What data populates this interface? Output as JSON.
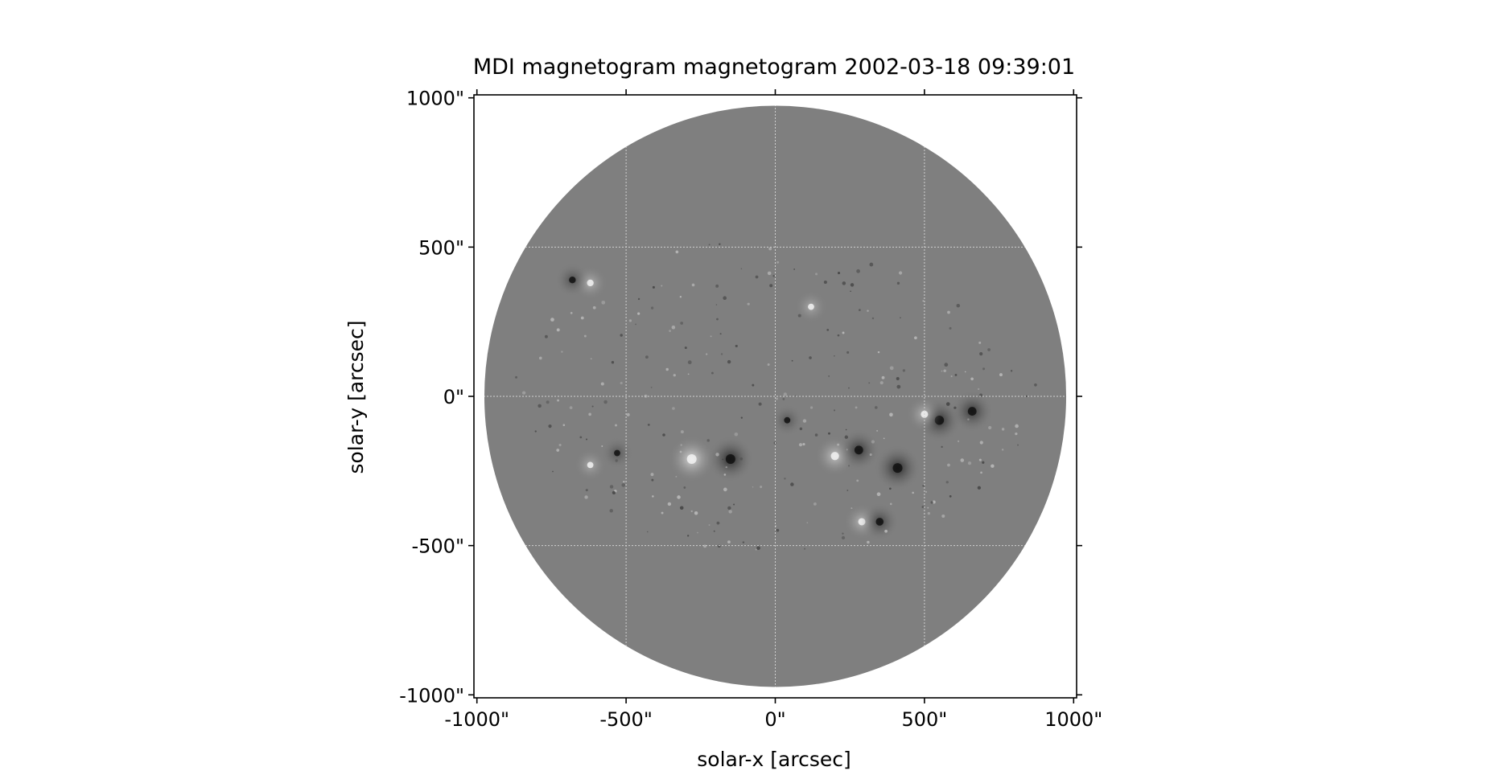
{
  "title": "MDI magnetogram magnetogram 2002-03-18 09:39:01",
  "xlabel": "solar-x [arcsec]",
  "ylabel": "solar-y [arcsec]",
  "x_ticks": [
    {
      "value": -1000,
      "label": "-1000\""
    },
    {
      "value": -500,
      "label": "-500\""
    },
    {
      "value": 0,
      "label": "0\""
    },
    {
      "value": 500,
      "label": "500\""
    },
    {
      "value": 1000,
      "label": "1000\""
    }
  ],
  "y_ticks": [
    {
      "value": 1000,
      "label": "1000\""
    },
    {
      "value": 500,
      "label": "500\""
    },
    {
      "value": 0,
      "label": "0\""
    },
    {
      "value": -500,
      "label": "-500\""
    },
    {
      "value": -1000,
      "label": "-1000\""
    }
  ],
  "axis_range_arcsec": {
    "x": [
      -1010,
      1010
    ],
    "y": [
      -1010,
      1010
    ]
  },
  "solar_radius_arcsec": 975,
  "grid": true,
  "colors": {
    "disk": "#7f7f7f",
    "positive_flux": "#f2f2f2",
    "negative_flux": "#111111",
    "grid": "#d0d0d0"
  },
  "active_regions": [
    {
      "x": -280,
      "y": -210,
      "polarity": "positive",
      "strength": 1.0
    },
    {
      "x": -150,
      "y": -210,
      "polarity": "negative",
      "strength": 1.0
    },
    {
      "x": 200,
      "y": -200,
      "polarity": "positive",
      "strength": 0.7
    },
    {
      "x": 280,
      "y": -180,
      "polarity": "negative",
      "strength": 0.8
    },
    {
      "x": 410,
      "y": -240,
      "polarity": "negative",
      "strength": 1.0
    },
    {
      "x": 550,
      "y": -80,
      "polarity": "negative",
      "strength": 0.9
    },
    {
      "x": 500,
      "y": -60,
      "polarity": "positive",
      "strength": 0.5
    },
    {
      "x": 660,
      "y": -50,
      "polarity": "negative",
      "strength": 0.8
    },
    {
      "x": 290,
      "y": -420,
      "polarity": "positive",
      "strength": 0.5
    },
    {
      "x": 350,
      "y": -420,
      "polarity": "negative",
      "strength": 0.6
    },
    {
      "x": -620,
      "y": 380,
      "polarity": "positive",
      "strength": 0.4
    },
    {
      "x": -680,
      "y": 390,
      "polarity": "negative",
      "strength": 0.4
    },
    {
      "x": 120,
      "y": 300,
      "polarity": "positive",
      "strength": 0.3
    },
    {
      "x": -530,
      "y": -190,
      "polarity": "negative",
      "strength": 0.3
    },
    {
      "x": -620,
      "y": -230,
      "polarity": "positive",
      "strength": 0.3
    },
    {
      "x": 40,
      "y": -80,
      "polarity": "negative",
      "strength": 0.3
    }
  ]
}
